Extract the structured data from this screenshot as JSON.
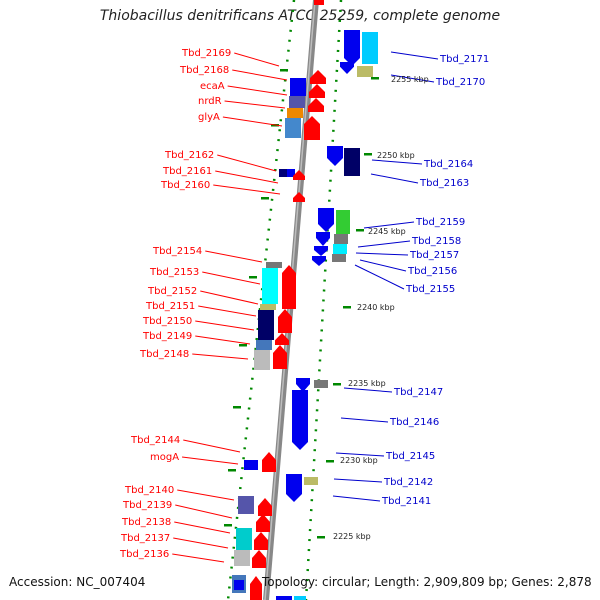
{
  "title": "Thiobacillus denitrificans ATCC 25259, complete genome",
  "footer": {
    "accession": "Accession: NC_007404",
    "topology": "Topology: circular; Length: 2,909,809 bp; Genes: 2,878"
  },
  "colors": {
    "backbone": "#888888",
    "label_left": "#ff0000",
    "label_right": "#0000cc",
    "tick": "#008800",
    "scale_text": "#222222"
  },
  "left_labels": [
    "Tbd_2169",
    "Tbd_2168",
    "ecaA",
    "nrdR",
    "glyA",
    "Tbd_2162",
    "Tbd_2161",
    "Tbd_2160",
    "Tbd_2154",
    "Tbd_2153",
    "Tbd_2152",
    "Tbd_2151",
    "Tbd_2150",
    "Tbd_2149",
    "Tbd_2148",
    "Tbd_2144",
    "mogA",
    "Tbd_2140",
    "Tbd_2139",
    "Tbd_2138",
    "Tbd_2137",
    "Tbd_2136"
  ],
  "right_labels": [
    "Tbd_2171",
    "Tbd_2170",
    "Tbd_2164",
    "Tbd_2163",
    "Tbd_2159",
    "Tbd_2158",
    "Tbd_2157",
    "Tbd_2156",
    "Tbd_2155",
    "Tbd_2147",
    "Tbd_2146",
    "Tbd_2145",
    "Tbd_2142",
    "Tbd_2141"
  ],
  "scale_labels": [
    "2255 kbp",
    "2250 kbp",
    "2245 kbp",
    "2240 kbp",
    "2235 kbp",
    "2230 kbp",
    "2225 kbp"
  ]
}
